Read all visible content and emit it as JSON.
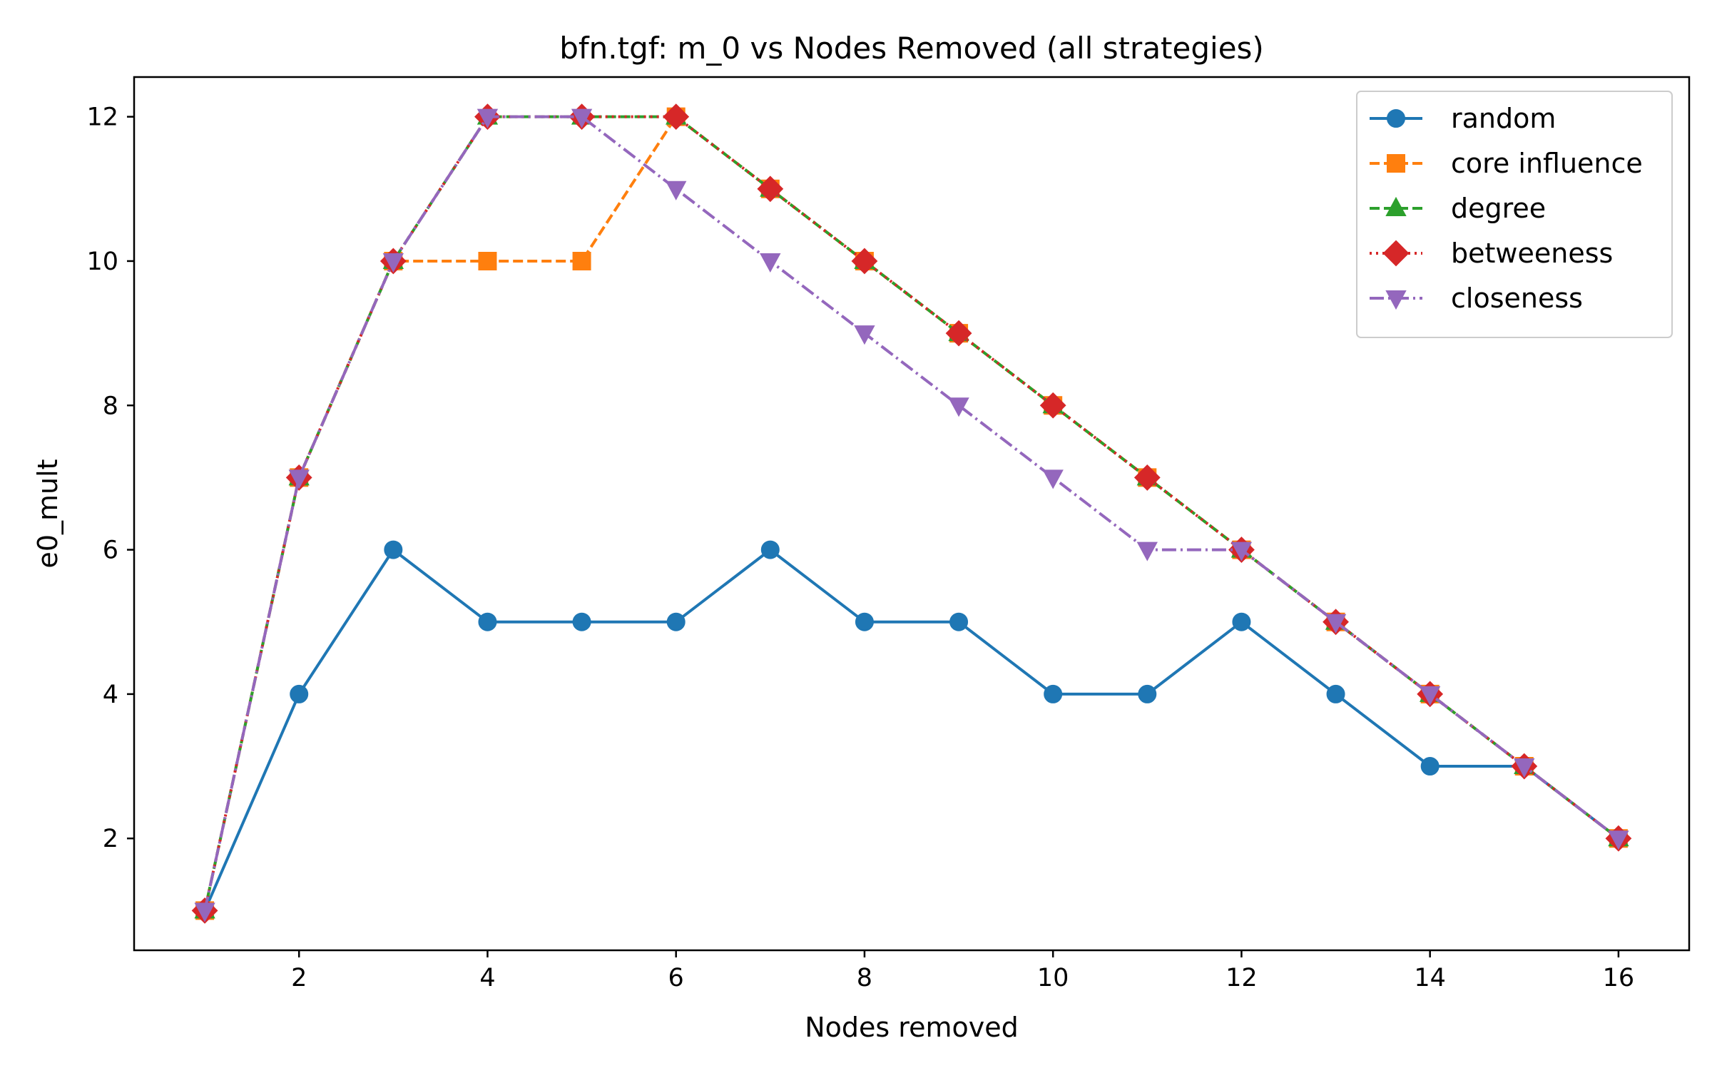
{
  "chart_data": {
    "type": "line",
    "title": "bfn.tgf: m_0 vs Nodes Removed (all strategies)",
    "xlabel": "Nodes removed",
    "ylabel": "e0_mult",
    "x": [
      1,
      2,
      3,
      4,
      5,
      6,
      7,
      8,
      9,
      10,
      11,
      12,
      13,
      14,
      15,
      16
    ],
    "xlim": [
      0.25,
      16.75
    ],
    "ylim": [
      0.45,
      12.55
    ],
    "xticks": [
      2,
      4,
      6,
      8,
      10,
      12,
      14,
      16
    ],
    "yticks": [
      2,
      4,
      6,
      8,
      10,
      12
    ],
    "grid": false,
    "legend_position": "top-right",
    "series": [
      {
        "name": "random",
        "color": "#1f77b4",
        "linestyle": "solid",
        "marker": "circle",
        "values": [
          1,
          4,
          6,
          5,
          5,
          5,
          6,
          5,
          5,
          4,
          4,
          5,
          4,
          3,
          3,
          2
        ]
      },
      {
        "name": "core influence",
        "color": "#ff7f0e",
        "linestyle": "dashed",
        "marker": "square",
        "values": [
          1,
          7,
          10,
          10,
          10,
          12,
          11,
          10,
          9,
          8,
          7,
          6,
          5,
          4,
          3,
          2
        ]
      },
      {
        "name": "degree",
        "color": "#2ca02c",
        "linestyle": "dashed",
        "marker": "triangle-up",
        "values": [
          1,
          7,
          10,
          12,
          12,
          12,
          11,
          10,
          9,
          8,
          7,
          6,
          5,
          4,
          3,
          2
        ]
      },
      {
        "name": "betweeness",
        "color": "#d62728",
        "linestyle": "dotted",
        "marker": "diamond",
        "values": [
          1,
          7,
          10,
          12,
          12,
          12,
          11,
          10,
          9,
          8,
          7,
          6,
          5,
          4,
          3,
          2
        ]
      },
      {
        "name": "closeness",
        "color": "#9467bd",
        "linestyle": "dashdot",
        "marker": "triangle-down",
        "values": [
          1,
          7,
          10,
          12,
          12,
          11,
          10,
          9,
          8,
          7,
          6,
          6,
          5,
          4,
          3,
          2
        ]
      }
    ]
  }
}
